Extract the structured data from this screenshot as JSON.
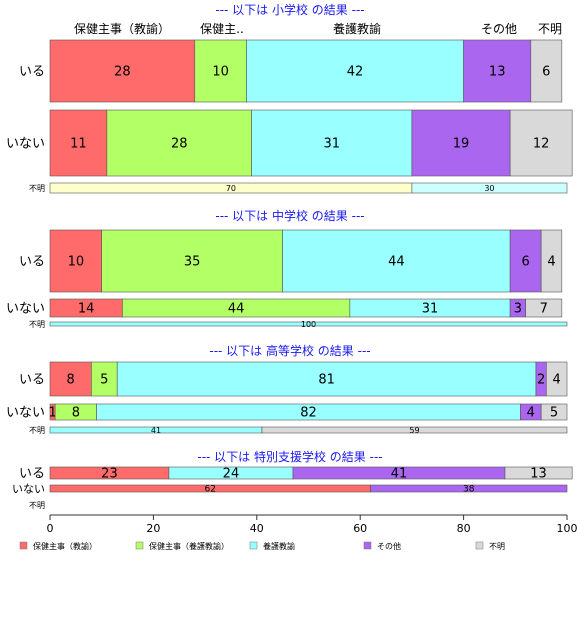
{
  "chart_data": {
    "type": "bar",
    "orientation": "horizontal",
    "stacked": true,
    "xlim": [
      0,
      100
    ],
    "xticks": [
      "0",
      "20",
      "40",
      "60",
      "80",
      "100"
    ],
    "legend": {
      "placement": "bottom",
      "entries": [
        {
          "label": "保健主事（教諭）",
          "color": "#ff6b6b"
        },
        {
          "label": "保健主事（養護教諭）",
          "color": "#b3ff66"
        },
        {
          "label": "養護教諭",
          "color": "#99ffff"
        },
        {
          "label": "その他",
          "color": "#aa66ee"
        },
        {
          "label": "不明",
          "color": "#d9d9d9"
        }
      ]
    },
    "top_labels": [
      "保健主事（教諭）",
      "保健主..",
      "養護教諭",
      "その他",
      "不明"
    ],
    "groups": [
      {
        "title": "--- 以下は 小学校 の結果 ---",
        "rows": [
          {
            "label": "いる",
            "values": [
              28,
              10,
              42,
              13,
              6
            ],
            "colors": [
              "#ff6b6b",
              "#b3ff66",
              "#99ffff",
              "#aa66ee",
              "#d9d9d9"
            ]
          },
          {
            "label": "いない",
            "values": [
              11,
              28,
              31,
              19,
              12
            ],
            "colors": [
              "#ff6b6b",
              "#b3ff66",
              "#99ffff",
              "#aa66ee",
              "#d9d9d9"
            ]
          },
          {
            "label": "不明",
            "values": [
              70,
              30
            ],
            "colors": [
              "#ffffcc",
              "#ccffff"
            ]
          }
        ]
      },
      {
        "title": "--- 以下は 中学校 の結果 ---",
        "rows": [
          {
            "label": "いる",
            "values": [
              10,
              35,
              44,
              6,
              4
            ],
            "colors": [
              "#ff6b6b",
              "#b3ff66",
              "#99ffff",
              "#aa66ee",
              "#d9d9d9"
            ]
          },
          {
            "label": "いない",
            "values": [
              14,
              44,
              31,
              3,
              7
            ],
            "colors": [
              "#ff6b6b",
              "#b3ff66",
              "#99ffff",
              "#aa66ee",
              "#d9d9d9"
            ]
          },
          {
            "label": "不明",
            "values": [
              100
            ],
            "colors": [
              "#99ffff"
            ]
          }
        ]
      },
      {
        "title": "--- 以下は 高等学校 の結果 ---",
        "rows": [
          {
            "label": "いる",
            "values": [
              8,
              5,
              81,
              2,
              4
            ],
            "colors": [
              "#ff6b6b",
              "#b3ff66",
              "#99ffff",
              "#aa66ee",
              "#d9d9d9"
            ]
          },
          {
            "label": "いない",
            "values": [
              1,
              8,
              82,
              4,
              5
            ],
            "colors": [
              "#ff6b6b",
              "#b3ff66",
              "#99ffff",
              "#aa66ee",
              "#d9d9d9"
            ]
          },
          {
            "label": "不明",
            "values": [
              41,
              59
            ],
            "colors": [
              "#99ffff",
              "#d9d9d9"
            ]
          }
        ]
      },
      {
        "title": "--- 以下は 特別支援学校 の結果 ---",
        "rows": [
          {
            "label": "いる",
            "values": [
              23,
              24,
              41,
              13
            ],
            "colors": [
              "#ff6b6b",
              "#99ffff",
              "#aa66ee",
              "#d9d9d9"
            ]
          },
          {
            "label": "いない",
            "values": [
              62,
              38
            ],
            "colors": [
              "#ff6b6b",
              "#aa66ee"
            ]
          },
          {
            "label": "不明",
            "values": [],
            "colors": []
          }
        ]
      }
    ]
  }
}
